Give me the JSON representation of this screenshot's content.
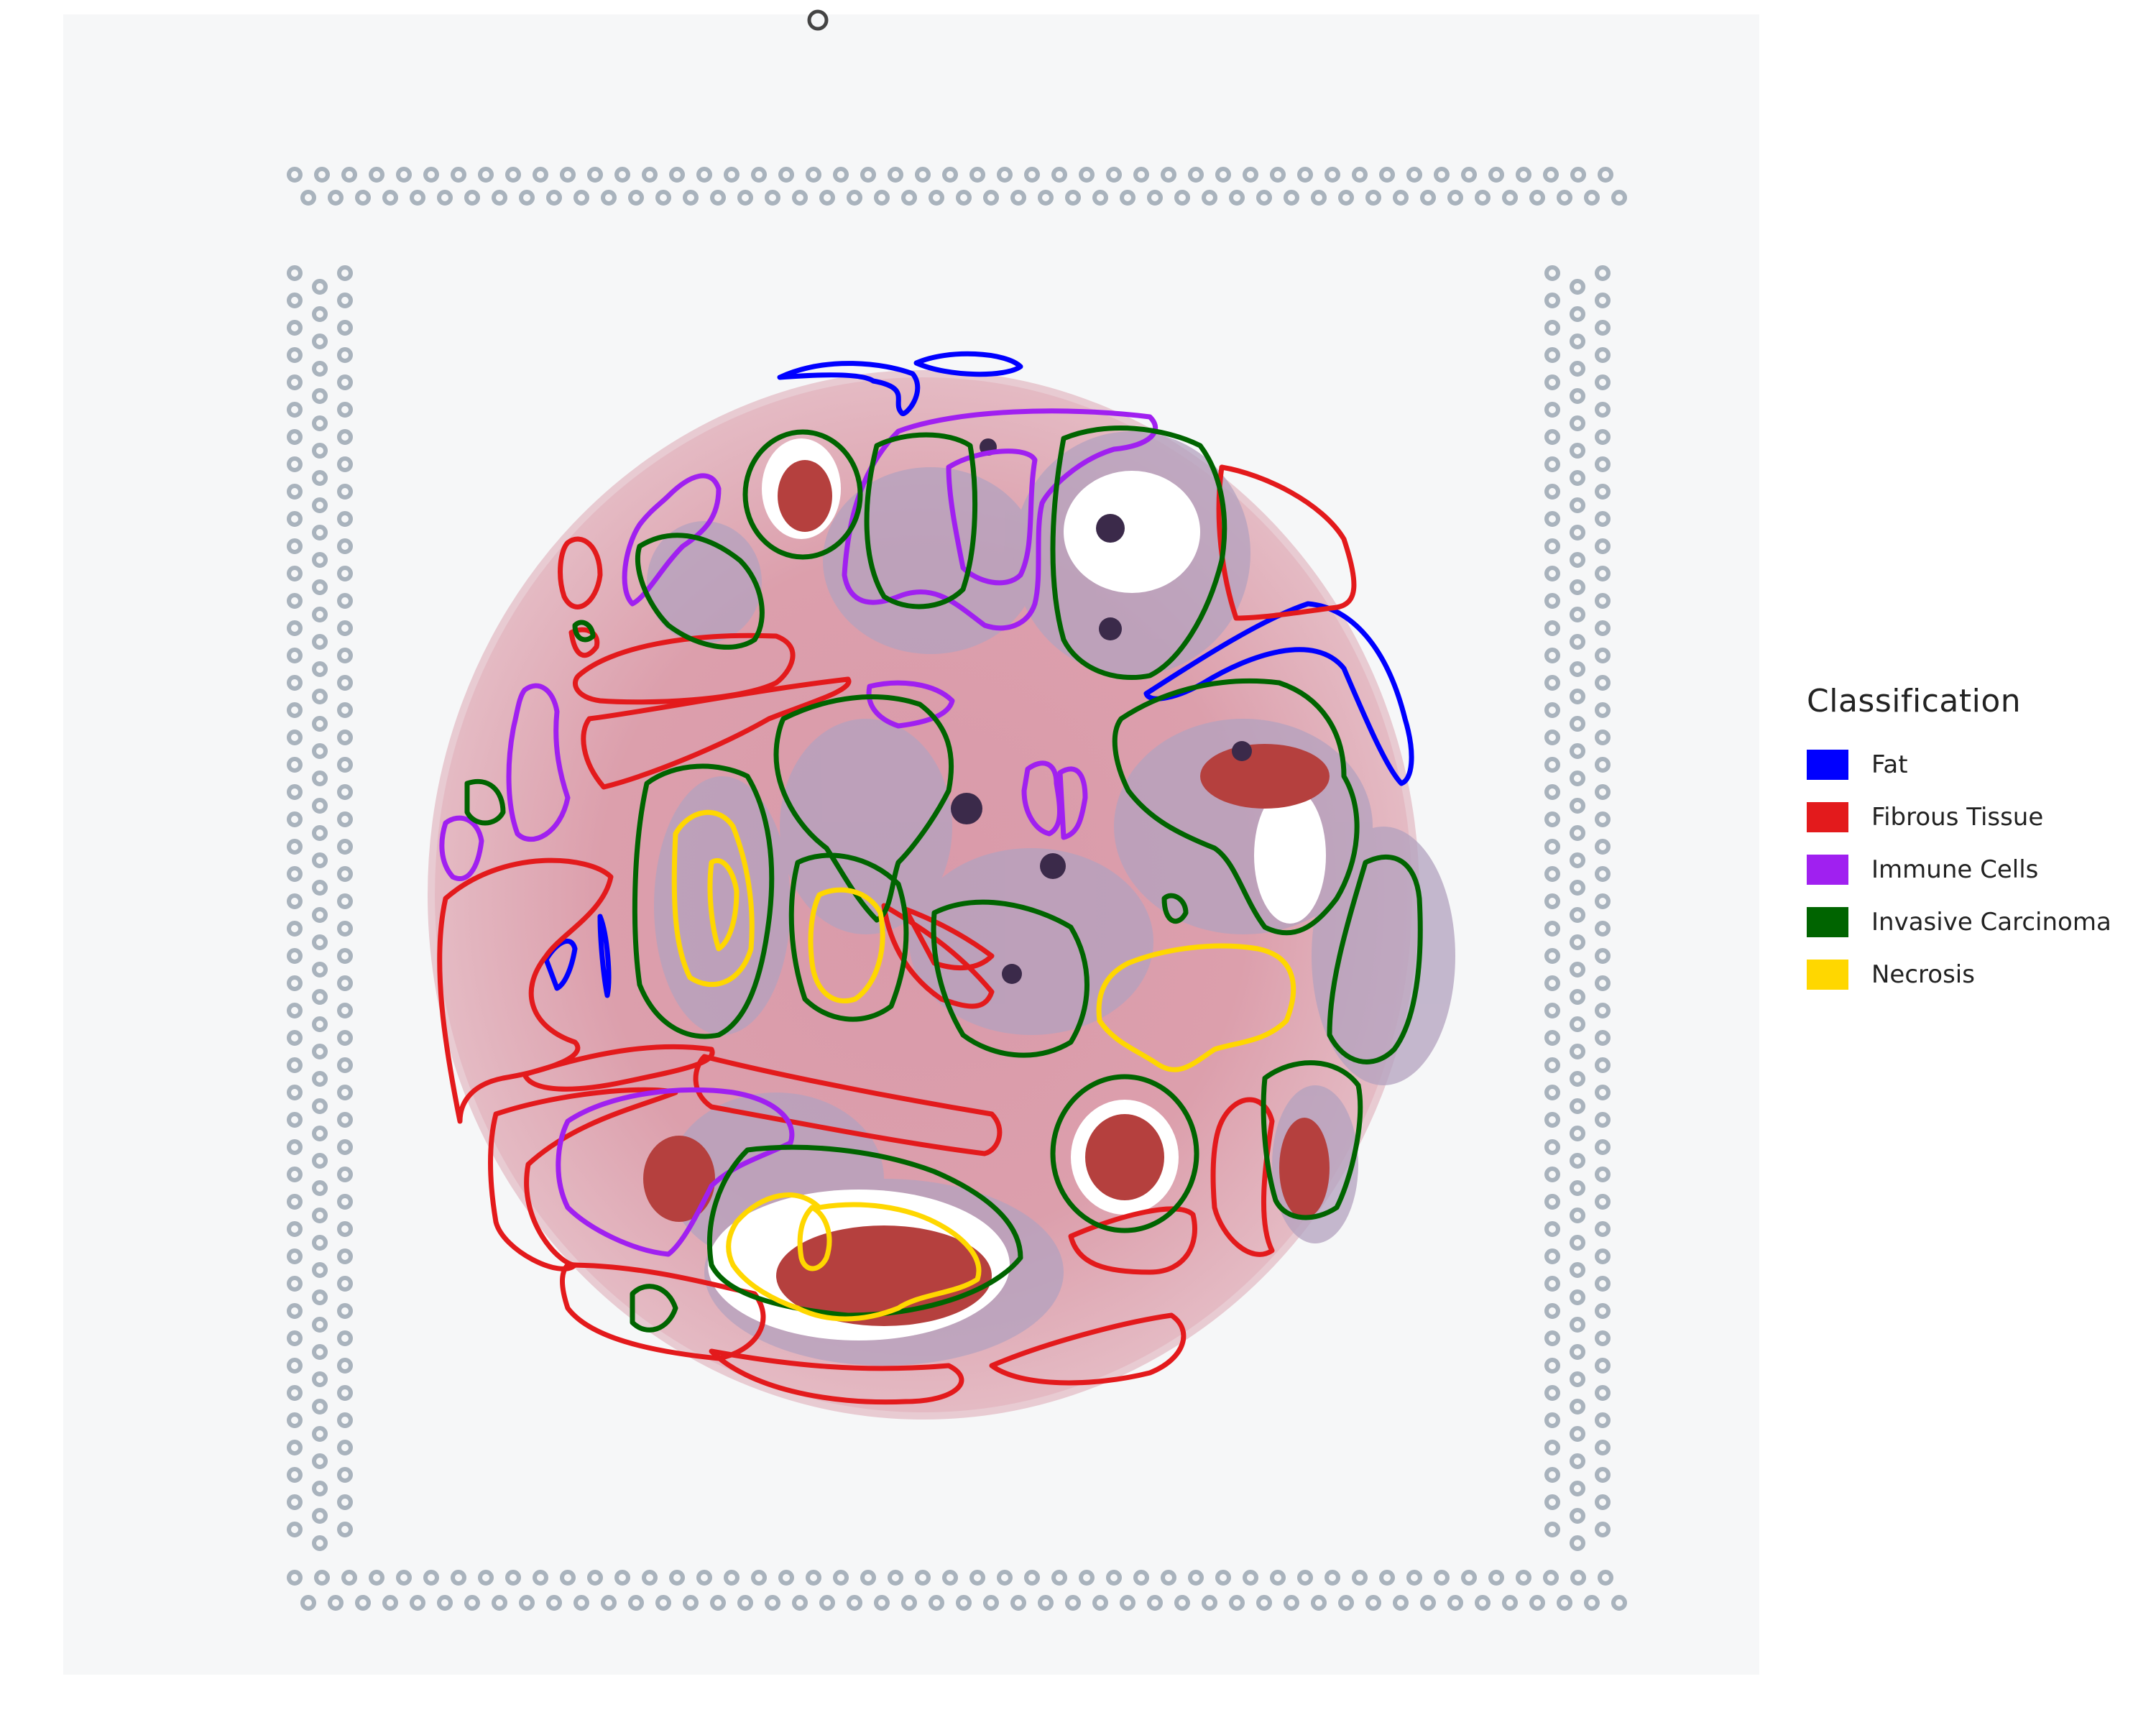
{
  "figure": {
    "legend": {
      "title": "Classification",
      "items": [
        {
          "label": "Fat",
          "color": "#0000FF"
        },
        {
          "label": "Fibrous Tissue",
          "color": "#E31A1C"
        },
        {
          "label": "Immune Cells",
          "color": "#A020F0"
        },
        {
          "label": "Invasive Carcinoma",
          "color": "#006400"
        },
        {
          "label": "Necrosis",
          "color": "#FFD700"
        }
      ]
    },
    "tissue": {
      "stain_color": "#d98c9a",
      "background": "#f7f8f9",
      "fiducial_color": "#a9b3bd"
    }
  }
}
